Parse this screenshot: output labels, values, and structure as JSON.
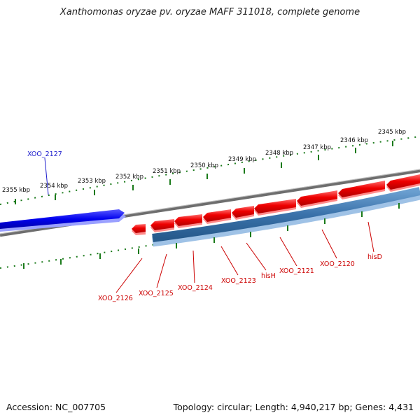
{
  "title": "Xanthomonas oryzae pv. oryzae MAFF 311018, complete genome",
  "footer": {
    "accession": "Accession: NC_007705",
    "summary": "Topology: circular; Length: 4,940,217 bp; Genes: 4,431"
  },
  "colors": {
    "backbone": "#7a7a7a",
    "forward_gene": "#0000e6",
    "reverse_gene": "#ee0000",
    "cds_track": "#3a72aa",
    "tick": "#1a7a1a",
    "forward_label": "#1a1acc",
    "reverse_label": "#cc0000"
  },
  "scale": {
    "unit": "kbp",
    "outer_labels": [
      "2345 kbp",
      "2346 kbp",
      "2347 kbp",
      "2348 kbp",
      "2349 kbp",
      "2350 kbp",
      "2351 kbp",
      "2352 kbp",
      "2353 kbp",
      "2354 kbp",
      "2355 kbp"
    ]
  },
  "genes": {
    "forward": [
      {
        "name": "XOO_2127",
        "strand": "+"
      }
    ],
    "reverse": [
      {
        "name": "XOO_2126",
        "strand": "-"
      },
      {
        "name": "XOO_2125",
        "strand": "-"
      },
      {
        "name": "XOO_2124",
        "strand": "-"
      },
      {
        "name": "XOO_2123",
        "strand": "-"
      },
      {
        "name": "hisH",
        "strand": "-"
      },
      {
        "name": "XOO_2121",
        "strand": "-"
      },
      {
        "name": "XOO_2120",
        "strand": "-"
      },
      {
        "name": "hisD",
        "strand": "-"
      }
    ]
  }
}
